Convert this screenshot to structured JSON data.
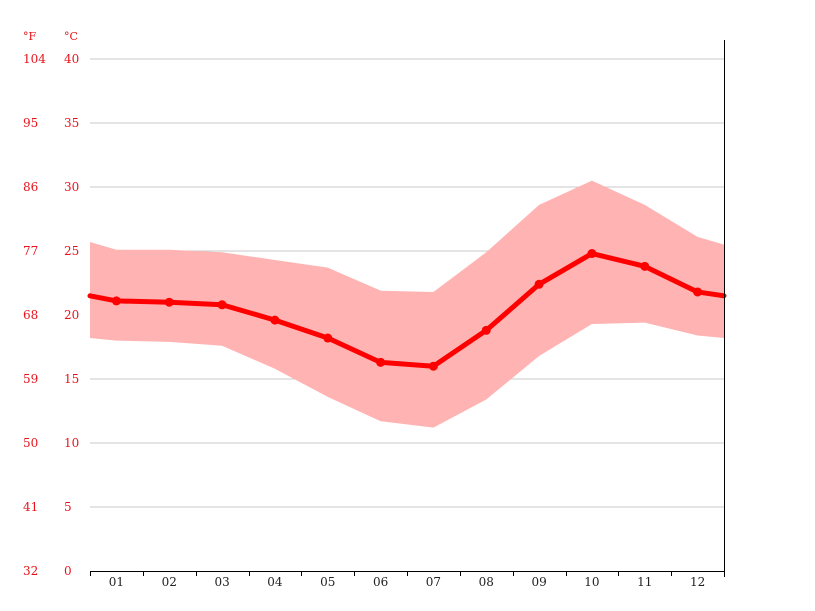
{
  "chart_data": {
    "type": "line",
    "categories": [
      "01",
      "02",
      "03",
      "04",
      "05",
      "06",
      "07",
      "08",
      "09",
      "10",
      "11",
      "12"
    ],
    "units": {
      "fahrenheit": "°F",
      "celsius": "°C"
    },
    "y_ticks_celsius": [
      40,
      35,
      30,
      25,
      20,
      15,
      10,
      5,
      0
    ],
    "y_ticks_fahrenheit": [
      104,
      95,
      86,
      77,
      68,
      59,
      50,
      41,
      32
    ],
    "ylim": [
      0,
      42
    ],
    "grid": true,
    "series": [
      {
        "kind": "line",
        "values": [
          21.1,
          21.0,
          20.8,
          19.6,
          18.2,
          16.3,
          16.0,
          18.8,
          22.4,
          24.8,
          23.8,
          21.8
        ]
      },
      {
        "kind": "max-band",
        "values": [
          25.1,
          25.1,
          24.9,
          24.3,
          23.7,
          21.9,
          21.8,
          24.9,
          28.6,
          30.5,
          28.6,
          26.1
        ]
      },
      {
        "kind": "min-band",
        "values": [
          18.0,
          17.9,
          17.6,
          15.8,
          13.6,
          11.7,
          11.2,
          13.4,
          16.8,
          19.3,
          19.4,
          18.4
        ]
      }
    ],
    "edge_values": {
      "line": [
        21.5,
        21.5
      ],
      "max": [
        25.7,
        25.5
      ],
      "min": [
        18.2,
        18.2
      ]
    },
    "colors": {
      "line": "#ff0000",
      "band": "#ffb3b3",
      "tick_text": "#e8131b",
      "grid": "#c8c8c8",
      "axis": "#000000"
    }
  }
}
